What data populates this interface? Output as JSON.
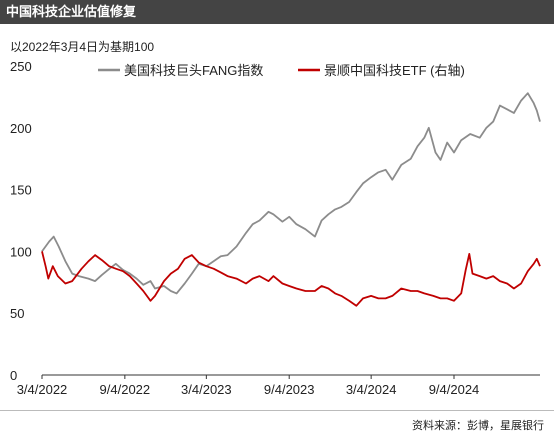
{
  "header": {
    "title": "中国科技企业估值修复"
  },
  "footer": {
    "source": "资料来源：彭博，星展银行"
  },
  "colors": {
    "fang": "#8c8c8c",
    "etf": "#c00000",
    "axis": "#333333",
    "header_bg": "#444444"
  },
  "chart_data": {
    "type": "line",
    "subtitle": "以2022年3月4日为基期100",
    "ylim": [
      0,
      250
    ],
    "yticks": [
      0,
      50,
      100,
      150,
      200,
      250
    ],
    "xlim": [
      "2022-03-04",
      "2025-03-14"
    ],
    "xticks": [
      "3/4/2022",
      "9/4/2022",
      "3/4/2023",
      "9/4/2023",
      "3/4/2024",
      "9/4/2024"
    ],
    "legend_position": "top",
    "grid": false,
    "series": [
      {
        "name": "美国科技巨头FANG指数",
        "color": "#8c8c8c",
        "points": [
          [
            "2022-03-04",
            100
          ],
          [
            "2022-03-20",
            108
          ],
          [
            "2022-03-30",
            112
          ],
          [
            "2022-04-10",
            104
          ],
          [
            "2022-04-25",
            92
          ],
          [
            "2022-05-10",
            82
          ],
          [
            "2022-05-25",
            80
          ],
          [
            "2022-06-15",
            78
          ],
          [
            "2022-06-30",
            76
          ],
          [
            "2022-07-15",
            81
          ],
          [
            "2022-08-01",
            86
          ],
          [
            "2022-08-15",
            90
          ],
          [
            "2022-08-31",
            85
          ],
          [
            "2022-09-15",
            82
          ],
          [
            "2022-09-30",
            78
          ],
          [
            "2022-10-15",
            73
          ],
          [
            "2022-10-31",
            76
          ],
          [
            "2022-11-10",
            70
          ],
          [
            "2022-11-30",
            72
          ],
          [
            "2022-12-15",
            68
          ],
          [
            "2022-12-28",
            66
          ],
          [
            "2023-01-15",
            74
          ],
          [
            "2023-01-31",
            82
          ],
          [
            "2023-02-15",
            90
          ],
          [
            "2023-03-04",
            88
          ],
          [
            "2023-03-20",
            92
          ],
          [
            "2023-04-05",
            96
          ],
          [
            "2023-04-20",
            97
          ],
          [
            "2023-05-10",
            104
          ],
          [
            "2023-05-31",
            115
          ],
          [
            "2023-06-15",
            122
          ],
          [
            "2023-06-30",
            125
          ],
          [
            "2023-07-20",
            132
          ],
          [
            "2023-07-31",
            130
          ],
          [
            "2023-08-20",
            124
          ],
          [
            "2023-09-04",
            128
          ],
          [
            "2023-09-20",
            122
          ],
          [
            "2023-10-10",
            118
          ],
          [
            "2023-10-31",
            112
          ],
          [
            "2023-11-15",
            125
          ],
          [
            "2023-11-30",
            130
          ],
          [
            "2023-12-15",
            134
          ],
          [
            "2023-12-29",
            136
          ],
          [
            "2024-01-15",
            140
          ],
          [
            "2024-01-31",
            148
          ],
          [
            "2024-02-15",
            155
          ],
          [
            "2024-03-04",
            160
          ],
          [
            "2024-03-20",
            164
          ],
          [
            "2024-04-05",
            166
          ],
          [
            "2024-04-20",
            158
          ],
          [
            "2024-05-10",
            170
          ],
          [
            "2024-05-31",
            175
          ],
          [
            "2024-06-15",
            185
          ],
          [
            "2024-06-30",
            192
          ],
          [
            "2024-07-10",
            200
          ],
          [
            "2024-07-25",
            180
          ],
          [
            "2024-08-05",
            174
          ],
          [
            "2024-08-20",
            188
          ],
          [
            "2024-09-04",
            180
          ],
          [
            "2024-09-20",
            190
          ],
          [
            "2024-10-10",
            195
          ],
          [
            "2024-10-31",
            192
          ],
          [
            "2024-11-15",
            200
          ],
          [
            "2024-11-30",
            205
          ],
          [
            "2024-12-15",
            218
          ],
          [
            "2024-12-31",
            215
          ],
          [
            "2025-01-15",
            212
          ],
          [
            "2025-01-31",
            222
          ],
          [
            "2025-02-15",
            228
          ],
          [
            "2025-02-28",
            220
          ],
          [
            "2025-03-07",
            214
          ],
          [
            "2025-03-14",
            205
          ]
        ]
      },
      {
        "name": "景顺中国科技ETF (右轴)",
        "color": "#c00000",
        "points": [
          [
            "2022-03-04",
            100
          ],
          [
            "2022-03-12",
            88
          ],
          [
            "2022-03-18",
            78
          ],
          [
            "2022-03-28",
            88
          ],
          [
            "2022-04-08",
            80
          ],
          [
            "2022-04-25",
            74
          ],
          [
            "2022-05-10",
            76
          ],
          [
            "2022-05-31",
            86
          ],
          [
            "2022-06-15",
            92
          ],
          [
            "2022-06-30",
            97
          ],
          [
            "2022-07-15",
            93
          ],
          [
            "2022-07-31",
            88
          ],
          [
            "2022-08-15",
            86
          ],
          [
            "2022-08-31",
            84
          ],
          [
            "2022-09-15",
            80
          ],
          [
            "2022-09-30",
            74
          ],
          [
            "2022-10-15",
            68
          ],
          [
            "2022-10-31",
            60
          ],
          [
            "2022-11-10",
            64
          ],
          [
            "2022-11-30",
            76
          ],
          [
            "2022-12-15",
            82
          ],
          [
            "2022-12-31",
            86
          ],
          [
            "2023-01-15",
            94
          ],
          [
            "2023-01-31",
            97
          ],
          [
            "2023-02-15",
            91
          ],
          [
            "2023-03-04",
            88
          ],
          [
            "2023-03-20",
            86
          ],
          [
            "2023-04-05",
            83
          ],
          [
            "2023-04-20",
            80
          ],
          [
            "2023-05-10",
            78
          ],
          [
            "2023-05-31",
            74
          ],
          [
            "2023-06-15",
            78
          ],
          [
            "2023-06-30",
            80
          ],
          [
            "2023-07-20",
            76
          ],
          [
            "2023-07-31",
            80
          ],
          [
            "2023-08-20",
            74
          ],
          [
            "2023-09-04",
            72
          ],
          [
            "2023-09-20",
            70
          ],
          [
            "2023-10-10",
            68
          ],
          [
            "2023-10-31",
            68
          ],
          [
            "2023-11-15",
            72
          ],
          [
            "2023-11-30",
            70
          ],
          [
            "2023-12-15",
            66
          ],
          [
            "2023-12-29",
            64
          ],
          [
            "2024-01-15",
            60
          ],
          [
            "2024-01-31",
            56
          ],
          [
            "2024-02-15",
            62
          ],
          [
            "2024-03-04",
            64
          ],
          [
            "2024-03-20",
            62
          ],
          [
            "2024-04-05",
            62
          ],
          [
            "2024-04-20",
            64
          ],
          [
            "2024-05-10",
            70
          ],
          [
            "2024-05-31",
            68
          ],
          [
            "2024-06-15",
            68
          ],
          [
            "2024-06-30",
            66
          ],
          [
            "2024-07-20",
            64
          ],
          [
            "2024-08-05",
            62
          ],
          [
            "2024-08-20",
            62
          ],
          [
            "2024-09-04",
            60
          ],
          [
            "2024-09-20",
            66
          ],
          [
            "2024-09-30",
            85
          ],
          [
            "2024-10-08",
            98
          ],
          [
            "2024-10-15",
            82
          ],
          [
            "2024-10-31",
            80
          ],
          [
            "2024-11-15",
            78
          ],
          [
            "2024-11-30",
            80
          ],
          [
            "2024-12-15",
            76
          ],
          [
            "2024-12-31",
            74
          ],
          [
            "2025-01-15",
            70
          ],
          [
            "2025-01-31",
            74
          ],
          [
            "2025-02-15",
            84
          ],
          [
            "2025-02-28",
            90
          ],
          [
            "2025-03-07",
            94
          ],
          [
            "2025-03-14",
            88
          ]
        ]
      }
    ]
  }
}
